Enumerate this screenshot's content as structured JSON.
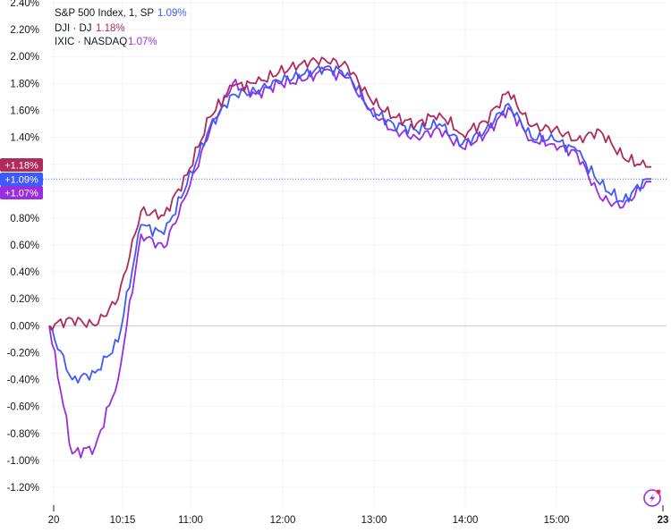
{
  "chart_data": {
    "type": "line",
    "title": "",
    "xlabel": "",
    "ylabel": "",
    "y_unit": "%",
    "ylim": [
      -1.3,
      2.4
    ],
    "y_ticks": [
      "2.40%",
      "2.20%",
      "2.00%",
      "1.80%",
      "1.60%",
      "1.40%",
      "1.20%",
      "1.00%",
      "0.80%",
      "0.60%",
      "0.40%",
      "0.20%",
      "0.00%",
      "-0.20%",
      "-0.40%",
      "-0.60%",
      "-0.80%",
      "-1.00%",
      "-1.20%"
    ],
    "x_ticks": [
      "20",
      "10:15",
      "11:00",
      "12:00",
      "13:00",
      "14:00",
      "15:00",
      "23"
    ],
    "grid": true,
    "legend_position": "top-left",
    "legend": [
      {
        "label": "S&P 500 Index, 1, SP",
        "value": "1.09%"
      },
      {
        "label": "DJI · DJ",
        "value": "1.18%"
      },
      {
        "label": "IXIC · NASDAQ",
        "value": "1.07%"
      }
    ],
    "last_value_badges": [
      "+1.18%",
      "+1.09%",
      "+1.07%"
    ],
    "x": [
      "09:30",
      "09:45",
      "10:00",
      "10:15",
      "10:30",
      "10:45",
      "11:00",
      "11:15",
      "11:30",
      "11:45",
      "12:00",
      "12:15",
      "12:30",
      "12:45",
      "13:00",
      "13:15",
      "13:30",
      "13:45",
      "14:00",
      "14:15",
      "14:30",
      "14:45",
      "15:00",
      "15:15",
      "15:30",
      "15:45",
      "16:00"
    ],
    "series": [
      {
        "name": "S&P 500 Index, 1, SP",
        "color": "#3d5afe",
        "values": [
          0.0,
          -0.4,
          -0.35,
          -0.12,
          0.75,
          0.68,
          1.05,
          1.48,
          1.72,
          1.74,
          1.82,
          1.86,
          1.92,
          1.88,
          1.6,
          1.5,
          1.45,
          1.5,
          1.35,
          1.45,
          1.65,
          1.4,
          1.38,
          1.3,
          1.05,
          0.92,
          1.09
        ]
      },
      {
        "name": "DJI · DJ",
        "color": "#b02a5b",
        "values": [
          0.0,
          0.05,
          0.0,
          0.2,
          0.85,
          0.82,
          1.12,
          1.55,
          1.78,
          1.8,
          1.88,
          1.95,
          1.98,
          1.93,
          1.68,
          1.55,
          1.5,
          1.58,
          1.42,
          1.52,
          1.74,
          1.48,
          1.46,
          1.38,
          1.45,
          1.25,
          1.18
        ]
      },
      {
        "name": "IXIC · NASDAQ",
        "color": "#9b2de0",
        "values": [
          0.0,
          -0.95,
          -0.9,
          -0.4,
          0.68,
          0.58,
          0.98,
          1.45,
          1.8,
          1.72,
          1.8,
          1.82,
          1.9,
          1.84,
          1.6,
          1.45,
          1.4,
          1.46,
          1.32,
          1.42,
          1.62,
          1.38,
          1.35,
          1.28,
          0.95,
          0.88,
          1.07
        ]
      }
    ]
  }
}
